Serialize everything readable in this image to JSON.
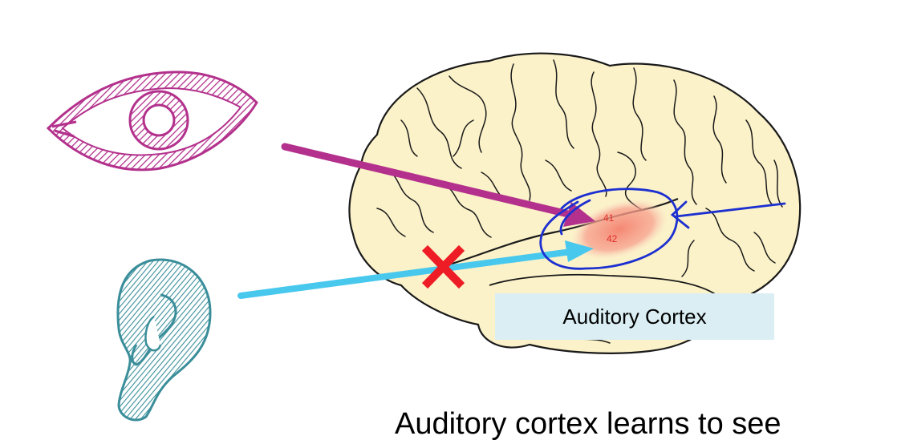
{
  "colors": {
    "eye": "#b3318c",
    "ear": "#3a8e9a",
    "visual_arrow": "#b3318c",
    "auditory_arrow": "#49c8ee",
    "blocked_mark": "#ee1c24",
    "circle_annotation": "#1c2fd0",
    "brain_fill": "#fbf2c9",
    "brain_lines": "#1a1a1a",
    "cortex_highlight": "#f58a78",
    "label_box": "#daeef3"
  },
  "icons": {
    "eye": "eye-icon",
    "ear": "ear-icon",
    "brain": "brain-illustration",
    "blocked": "x-mark-icon"
  },
  "brodmann_areas": [
    "41",
    "42"
  ],
  "cortex_label": "Auditory Cortex",
  "caption": "Auditory cortex learns to see"
}
